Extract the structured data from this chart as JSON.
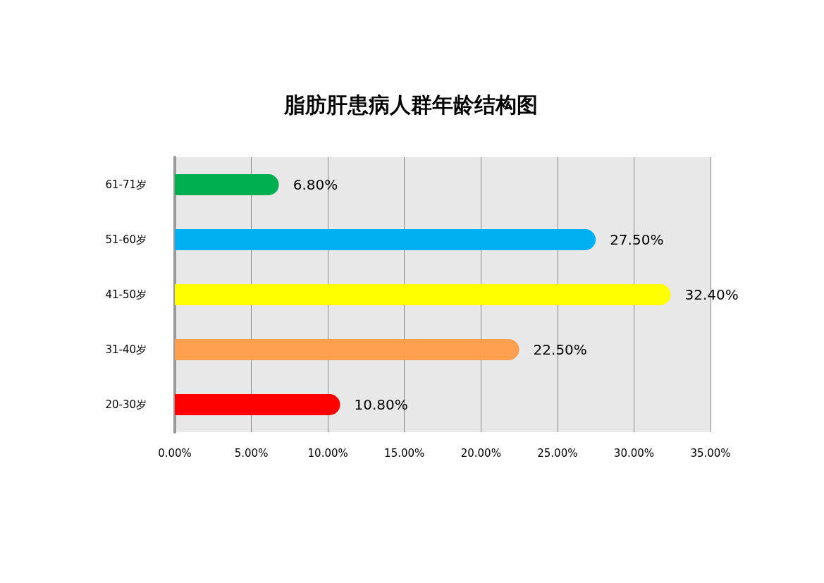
{
  "chart_data": {
    "type": "bar",
    "title": "脂肪肝患病人群年龄结构图",
    "orientation": "horizontal",
    "categories": [
      "61-71岁",
      "51-60岁",
      "41-50岁",
      "31-40岁",
      "20-30岁"
    ],
    "values": [
      6.8,
      27.5,
      32.4,
      22.5,
      10.8
    ],
    "colors": [
      "#00b050",
      "#00b0f0",
      "#ffff00",
      "#ffa050",
      "#ff0000"
    ],
    "value_labels": [
      "6.80%",
      "27.50%",
      "32.40%",
      "22.50%",
      "10.80%"
    ],
    "xlim": [
      0,
      35
    ],
    "xticks": [
      {
        "value": 0,
        "label": "0.00%"
      },
      {
        "value": 5,
        "label": "5.00%"
      },
      {
        "value": 10,
        "label": "10.00%"
      },
      {
        "value": 15,
        "label": "15.00%"
      },
      {
        "value": 20,
        "label": "20.00%"
      },
      {
        "value": 25,
        "label": "25.00%"
      },
      {
        "value": 30,
        "label": "30.00%"
      },
      {
        "value": 35,
        "label": "35.00%"
      }
    ],
    "grid": "x"
  }
}
